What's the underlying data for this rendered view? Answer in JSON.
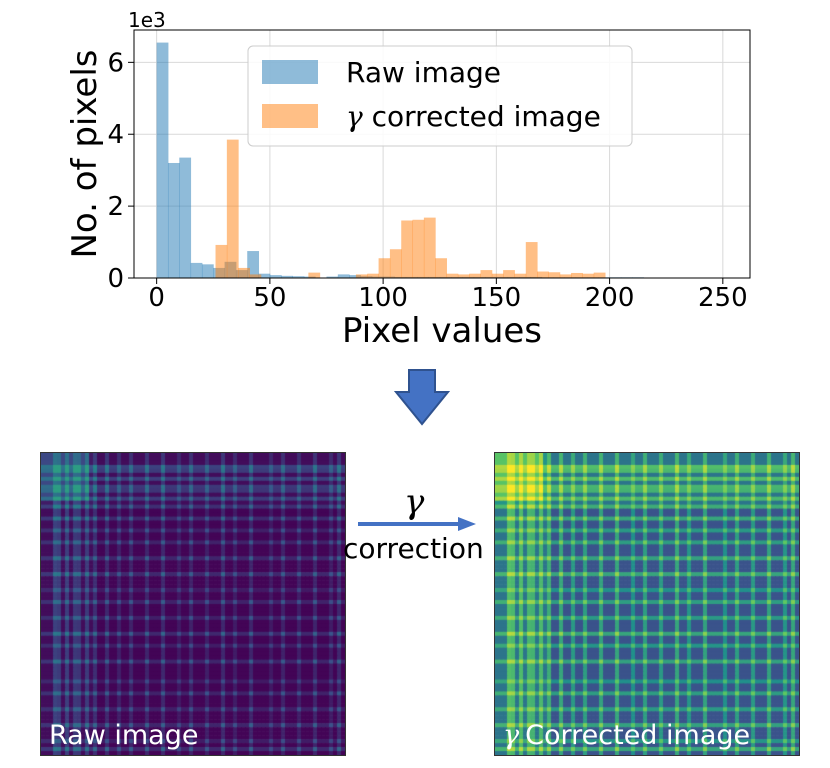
{
  "chart_data": {
    "type": "histogram",
    "xlabel": "Pixel values",
    "ylabel": "No. of pixels",
    "y_scale_label": "1e3",
    "xlim": [
      -10,
      262
    ],
    "ylim": [
      0,
      6.9
    ],
    "x_ticks": [
      "0",
      "50",
      "100",
      "150",
      "200",
      "250"
    ],
    "x_tick_values": [
      0,
      50,
      100,
      150,
      200,
      250
    ],
    "y_ticks": [
      "0",
      "2",
      "4",
      "6"
    ],
    "y_tick_values": [
      0,
      2,
      4,
      6
    ],
    "grid": true,
    "legend_position": "top-center",
    "bin_width": 5.2,
    "series": [
      {
        "name": "Raw image",
        "name_prefix": "",
        "color": "#1f77b4",
        "bin_starts": [
          0,
          5,
          10,
          15,
          20,
          25,
          30,
          35,
          40,
          45,
          50,
          55,
          60,
          65,
          75,
          80,
          85,
          90,
          95,
          100,
          105,
          110,
          115,
          120,
          125,
          130,
          135,
          140,
          145,
          150,
          155,
          160,
          165,
          170,
          175,
          180,
          185,
          190,
          195,
          200,
          205,
          210
        ],
        "values": [
          6.55,
          3.2,
          3.35,
          0.42,
          0.38,
          0.28,
          0.45,
          0.22,
          0.75,
          0.12,
          0.08,
          0.06,
          0.05,
          0.04,
          0.04,
          0.1,
          0.08,
          0.05,
          0.04,
          0.04,
          0.03,
          0.03,
          0.03,
          0.03,
          0.03,
          0.03,
          0.03,
          0.03,
          0.03,
          0.03,
          0.03,
          0.03,
          0.03,
          0.02,
          0.02,
          0.02,
          0.02,
          0.02,
          0.02,
          0.02,
          0.02,
          0.02
        ]
      },
      {
        "name": "corrected image",
        "name_prefix": "γ",
        "color": "#ff7f0e",
        "bin_starts": [
          26,
          31,
          36,
          41,
          67,
          88,
          93,
          98,
          103,
          108,
          113,
          118,
          123,
          128,
          133,
          138,
          143,
          148,
          153,
          158,
          163,
          168,
          173,
          178,
          183,
          188,
          193
        ],
        "values": [
          0.92,
          3.85,
          0.28,
          0.1,
          0.15,
          0.1,
          0.12,
          0.55,
          0.8,
          1.6,
          1.62,
          1.68,
          0.55,
          0.12,
          0.1,
          0.12,
          0.22,
          0.12,
          0.22,
          0.12,
          1.0,
          0.18,
          0.16,
          0.1,
          0.14,
          0.12,
          0.15
        ]
      }
    ]
  },
  "panels": {
    "raw_label": "Raw image",
    "corrected_gamma": "γ",
    "corrected_label": "Corrected image"
  },
  "arrow_label": {
    "gamma": "γ",
    "text": "correction"
  },
  "colors": {
    "arrow": "#4472c4",
    "arrow_border": "#2f528f",
    "viridis_dark": "#440154",
    "viridis_teal": "#21918c",
    "viridis_yellow": "#fde725"
  }
}
